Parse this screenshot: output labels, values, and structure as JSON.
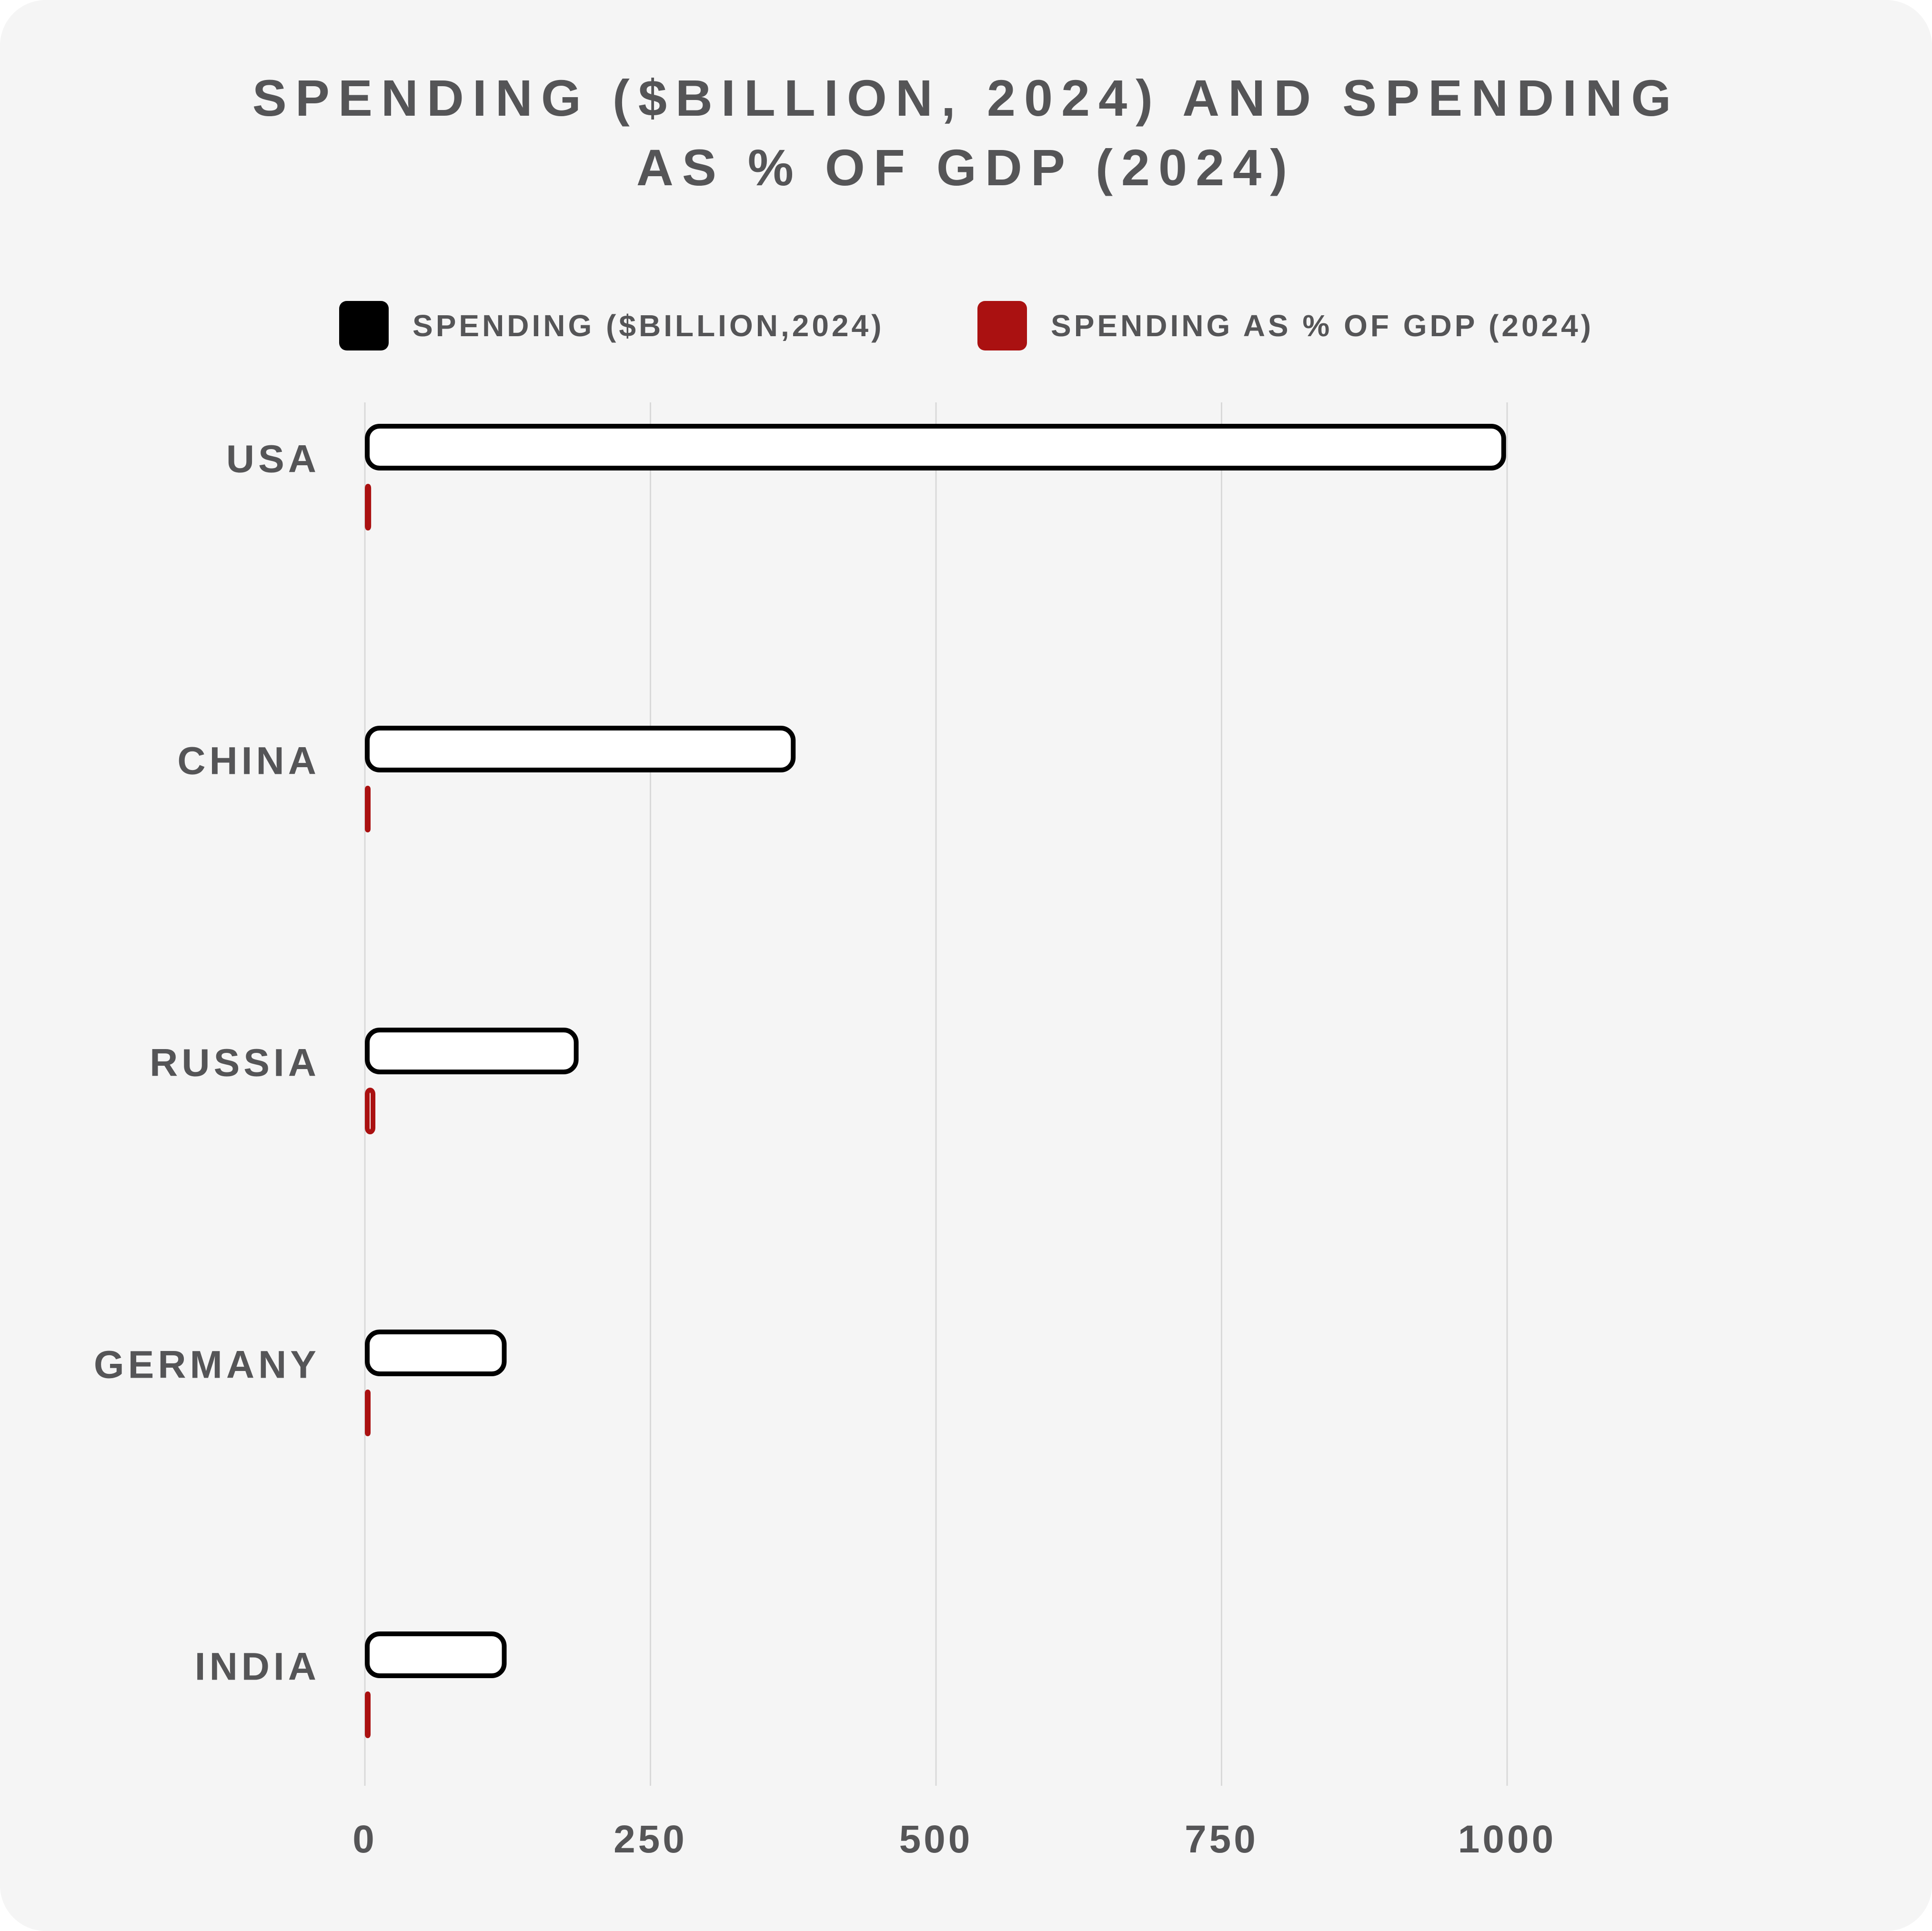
{
  "chart_data": {
    "type": "bar",
    "orientation": "horizontal",
    "title_lines": [
      "SPENDING ($BILLION, 2024) AND SPENDING",
      "AS % OF GDP (2024)"
    ],
    "categories": [
      "USA",
      "CHINA",
      "RUSSIA",
      "GERMANY",
      "INDIA"
    ],
    "series": [
      {
        "name": "SPENDING ($BILLION,2024)",
        "values": [
          997,
          375,
          185,
          122,
          122
        ],
        "color": "#000000"
      },
      {
        "name": "SPENDING AS % OF GDP (2024)",
        "values": [
          3.4,
          1.7,
          7.1,
          1.9,
          2.3
        ],
        "color": "#aa1111"
      }
    ],
    "x_ticks": [
      "0",
      "250",
      "500",
      "750",
      "1000"
    ],
    "xlim": [
      0,
      1000
    ],
    "grid": true,
    "legend_position": "top"
  }
}
